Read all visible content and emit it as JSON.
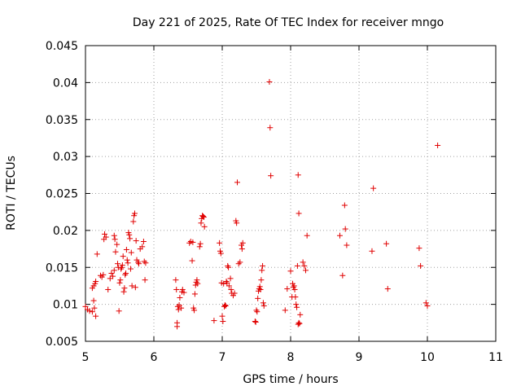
{
  "chart_data": {
    "type": "scatter",
    "title": "Day 221 of 2025, Rate Of TEC Index for receiver mngo",
    "xlabel": "GPS time / hours",
    "ylabel": "ROTI / TECUs",
    "xlim": [
      5,
      11
    ],
    "ylim": [
      0.005,
      0.045
    ],
    "xticks": [
      "5",
      "6",
      "7",
      "8",
      "9",
      "10",
      "11"
    ],
    "yticks": [
      "0.005",
      "0.01",
      "0.015",
      "0.02",
      "0.025",
      "0.03",
      "0.035",
      "0.04",
      "0.045"
    ],
    "grid": true,
    "marker": "+",
    "color": "#e00000",
    "series": [
      {
        "name": "ROTI",
        "points": [
          [
            5.0,
            0.0097
          ],
          [
            5.03,
            0.0093
          ],
          [
            5.06,
            0.0091
          ],
          [
            5.1,
            0.009
          ],
          [
            5.12,
            0.0105
          ],
          [
            5.13,
            0.0095
          ],
          [
            5.15,
            0.0084
          ],
          [
            5.1,
            0.0122
          ],
          [
            5.12,
            0.0125
          ],
          [
            5.14,
            0.0128
          ],
          [
            5.15,
            0.0131
          ],
          [
            5.17,
            0.0168
          ],
          [
            5.22,
            0.0139
          ],
          [
            5.24,
            0.0137
          ],
          [
            5.26,
            0.014
          ],
          [
            5.27,
            0.0188
          ],
          [
            5.28,
            0.0195
          ],
          [
            5.3,
            0.0191
          ],
          [
            5.33,
            0.012
          ],
          [
            5.36,
            0.0135
          ],
          [
            5.38,
            0.0142
          ],
          [
            5.4,
            0.0138
          ],
          [
            5.42,
            0.0146
          ],
          [
            5.42,
            0.0193
          ],
          [
            5.43,
            0.0188
          ],
          [
            5.44,
            0.0171
          ],
          [
            5.46,
            0.0181
          ],
          [
            5.47,
            0.0155
          ],
          [
            5.48,
            0.015
          ],
          [
            5.49,
            0.0091
          ],
          [
            5.5,
            0.0129
          ],
          [
            5.51,
            0.0133
          ],
          [
            5.52,
            0.0148
          ],
          [
            5.53,
            0.015
          ],
          [
            5.54,
            0.0153
          ],
          [
            5.55,
            0.0165
          ],
          [
            5.56,
            0.0117
          ],
          [
            5.57,
            0.0122
          ],
          [
            5.58,
            0.014
          ],
          [
            5.59,
            0.0142
          ],
          [
            5.6,
            0.0174
          ],
          [
            5.61,
            0.016
          ],
          [
            5.62,
            0.0156
          ],
          [
            5.63,
            0.0197
          ],
          [
            5.64,
            0.0194
          ],
          [
            5.65,
            0.0189
          ],
          [
            5.66,
            0.0148
          ],
          [
            5.67,
            0.017
          ],
          [
            5.68,
            0.0125
          ],
          [
            5.7,
            0.0212
          ],
          [
            5.71,
            0.022
          ],
          [
            5.72,
            0.0223
          ],
          [
            5.73,
            0.0123
          ],
          [
            5.74,
            0.0186
          ],
          [
            5.75,
            0.016
          ],
          [
            5.77,
            0.0157
          ],
          [
            5.78,
            0.0155
          ],
          [
            5.8,
            0.0175
          ],
          [
            5.83,
            0.0178
          ],
          [
            5.85,
            0.0185
          ],
          [
            5.86,
            0.0158
          ],
          [
            5.87,
            0.0133
          ],
          [
            5.88,
            0.0156
          ],
          [
            6.32,
            0.0133
          ],
          [
            6.33,
            0.012
          ],
          [
            6.34,
            0.0075
          ],
          [
            6.34,
            0.007
          ],
          [
            6.35,
            0.0097
          ],
          [
            6.36,
            0.0093
          ],
          [
            6.37,
            0.0099
          ],
          [
            6.38,
            0.0109
          ],
          [
            6.4,
            0.0095
          ],
          [
            6.41,
            0.0117
          ],
          [
            6.42,
            0.012
          ],
          [
            6.44,
            0.0116
          ],
          [
            6.52,
            0.0183
          ],
          [
            6.54,
            0.0185
          ],
          [
            6.56,
            0.0159
          ],
          [
            6.57,
            0.0184
          ],
          [
            6.58,
            0.0095
          ],
          [
            6.59,
            0.0092
          ],
          [
            6.6,
            0.0114
          ],
          [
            6.61,
            0.0126
          ],
          [
            6.62,
            0.013
          ],
          [
            6.63,
            0.0133
          ],
          [
            6.64,
            0.0128
          ],
          [
            6.67,
            0.0178
          ],
          [
            6.68,
            0.0182
          ],
          [
            6.69,
            0.021
          ],
          [
            6.7,
            0.0216
          ],
          [
            6.71,
            0.022
          ],
          [
            6.72,
            0.0219
          ],
          [
            6.73,
            0.0218
          ],
          [
            6.74,
            0.0205
          ],
          [
            6.88,
            0.0078
          ],
          [
            6.96,
            0.0183
          ],
          [
            6.97,
            0.0172
          ],
          [
            6.98,
            0.0169
          ],
          [
            6.99,
            0.0129
          ],
          [
            7.0,
            0.0084
          ],
          [
            7.01,
            0.0077
          ],
          [
            7.02,
            0.0128
          ],
          [
            7.03,
            0.0097
          ],
          [
            7.04,
            0.0099
          ],
          [
            7.05,
            0.0098
          ],
          [
            7.06,
            0.0131
          ],
          [
            7.07,
            0.0129
          ],
          [
            7.08,
            0.0152
          ],
          [
            7.09,
            0.015
          ],
          [
            7.1,
            0.0125
          ],
          [
            7.12,
            0.0135
          ],
          [
            7.13,
            0.012
          ],
          [
            7.14,
            0.0115
          ],
          [
            7.16,
            0.0112
          ],
          [
            7.18,
            0.0115
          ],
          [
            7.2,
            0.0213
          ],
          [
            7.21,
            0.021
          ],
          [
            7.22,
            0.0265
          ],
          [
            7.24,
            0.0155
          ],
          [
            7.26,
            0.0157
          ],
          [
            7.28,
            0.018
          ],
          [
            7.29,
            0.0175
          ],
          [
            7.3,
            0.0183
          ],
          [
            7.48,
            0.0077
          ],
          [
            7.49,
            0.0076
          ],
          [
            7.5,
            0.0092
          ],
          [
            7.51,
            0.009
          ],
          [
            7.52,
            0.0108
          ],
          [
            7.53,
            0.0118
          ],
          [
            7.54,
            0.0121
          ],
          [
            7.55,
            0.0124
          ],
          [
            7.56,
            0.012
          ],
          [
            7.57,
            0.0133
          ],
          [
            7.58,
            0.0146
          ],
          [
            7.59,
            0.0152
          ],
          [
            7.6,
            0.0102
          ],
          [
            7.61,
            0.0098
          ],
          [
            7.69,
            0.0401
          ],
          [
            7.7,
            0.0339
          ],
          [
            7.71,
            0.0274
          ],
          [
            7.92,
            0.0092
          ],
          [
            7.95,
            0.0121
          ],
          [
            8.0,
            0.0145
          ],
          [
            8.02,
            0.011
          ],
          [
            8.03,
            0.0128
          ],
          [
            8.04,
            0.0123
          ],
          [
            8.05,
            0.0125
          ],
          [
            8.06,
            0.012
          ],
          [
            8.07,
            0.011
          ],
          [
            8.08,
            0.01
          ],
          [
            8.09,
            0.0096
          ],
          [
            8.1,
            0.0152
          ],
          [
            8.11,
            0.0073
          ],
          [
            8.12,
            0.0075
          ],
          [
            8.13,
            0.0074
          ],
          [
            8.14,
            0.0086
          ],
          [
            8.11,
            0.0275
          ],
          [
            8.12,
            0.0223
          ],
          [
            8.18,
            0.0157
          ],
          [
            8.2,
            0.0152
          ],
          [
            8.22,
            0.0146
          ],
          [
            8.24,
            0.0193
          ],
          [
            8.72,
            0.0193
          ],
          [
            8.76,
            0.0139
          ],
          [
            8.79,
            0.0234
          ],
          [
            8.8,
            0.0202
          ],
          [
            8.82,
            0.018
          ],
          [
            9.19,
            0.0172
          ],
          [
            9.21,
            0.0257
          ],
          [
            9.4,
            0.0182
          ],
          [
            9.42,
            0.0121
          ],
          [
            9.88,
            0.0176
          ],
          [
            9.9,
            0.0152
          ],
          [
            9.98,
            0.0102
          ],
          [
            10.0,
            0.0098
          ],
          [
            10.15,
            0.0315
          ]
        ]
      }
    ]
  }
}
